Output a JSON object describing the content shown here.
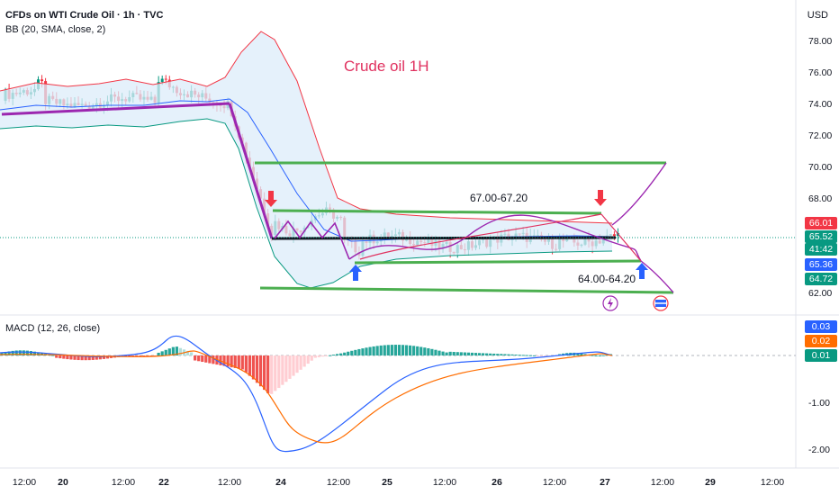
{
  "header": {
    "symbol_line": "CFDs on WTI Crude Oil · 1h · TVC",
    "indicator_bb": "BB (20, SMA, close, 2)",
    "indicator_macd": "MACD (12, 26, close)",
    "currency": "USD"
  },
  "colors": {
    "up": "#089981",
    "down": "#f23645",
    "bb_upper": "#f23645",
    "bb_lower": "#089981",
    "bb_basis": "#2962ff",
    "bb_fill": "#dcecf9",
    "trend": "#9c27b0",
    "channel": "#4caf50",
    "macd_line": "#2962ff",
    "signal_line": "#ff6d00"
  },
  "chart_data": [
    {
      "type": "candlestick",
      "title": "Crude oil 1H",
      "price_axis": {
        "ticks": [
          "78.00",
          "76.00",
          "74.00",
          "72.00",
          "70.00",
          "68.00",
          "62.00"
        ],
        "range": [
          61.5,
          79.5
        ]
      },
      "time_axis": {
        "ticks": [
          "12:00",
          "20",
          "12:00",
          "22",
          "12:00",
          "24",
          "12:00",
          "25",
          "12:00",
          "26",
          "12:00",
          "27",
          "12:00",
          "29",
          "12:00"
        ]
      },
      "annotations": [
        "67.00-67.20",
        "64.00-64.20"
      ],
      "price_tags": [
        {
          "value": "66.01",
          "color": "#f23645"
        },
        {
          "value": "65.52",
          "color": "#089981"
        },
        {
          "value": "41:42",
          "color": "#089981"
        },
        {
          "value": "65.36",
          "color": "#2962ff"
        },
        {
          "value": "64.72",
          "color": "#089981"
        }
      ],
      "levels": {
        "upper_channel": 70.2,
        "resistance": 67.0,
        "pivot": 65.4,
        "support": 64.0,
        "lower_channel": 62.0
      }
    },
    {
      "type": "macd",
      "title": "MACD (12, 26, close)",
      "axis": {
        "ticks": [
          "-1.00",
          "-2.00"
        ],
        "range": [
          -2.3,
          0.35
        ]
      },
      "value_tags": [
        {
          "value": "0.03",
          "color": "#2962ff"
        },
        {
          "value": "0.02",
          "color": "#ff6d00"
        },
        {
          "value": "0.01",
          "color": "#089981"
        }
      ]
    }
  ]
}
